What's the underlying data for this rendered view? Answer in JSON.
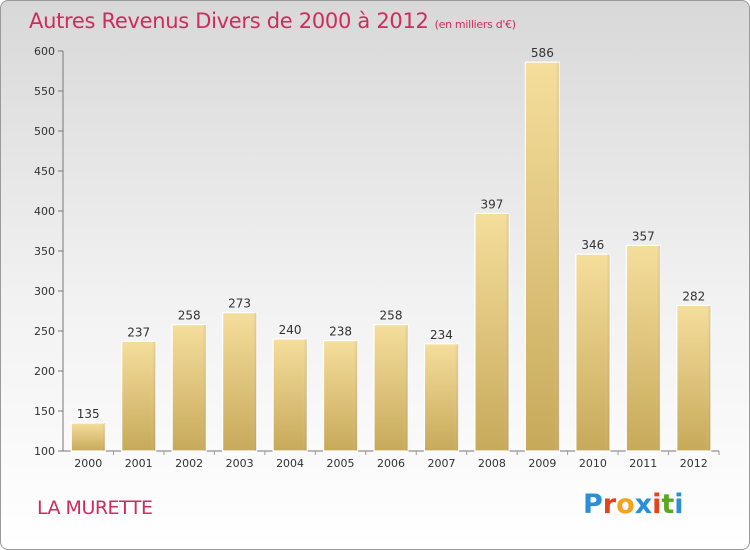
{
  "title": "Autres Revenus Divers de 2000 à 2012",
  "unit": "(en milliers d'€)",
  "location": "LA MURETTE",
  "logo": {
    "text": "Proxiti",
    "letter_colors": [
      "#2b8fd6",
      "#e8421c",
      "#f5a21a",
      "#2b8fd6",
      "#e8421c",
      "#5aa820",
      "#2b8fd6"
    ]
  },
  "colors": {
    "title": "#d02a5e",
    "bar_light": "#f5de9c",
    "bar_dark": "#c7a95a"
  },
  "chart_data": {
    "type": "bar",
    "categories": [
      "2000",
      "2001",
      "2002",
      "2003",
      "2004",
      "2005",
      "2006",
      "2007",
      "2008",
      "2009",
      "2010",
      "2011",
      "2012"
    ],
    "values": [
      135,
      237,
      258,
      273,
      240,
      238,
      258,
      234,
      397,
      586,
      346,
      357,
      282
    ],
    "ylim": [
      100,
      600
    ],
    "yticks": [
      100,
      150,
      200,
      250,
      300,
      350,
      400,
      450,
      500,
      550,
      600
    ],
    "grid": false,
    "data_labels": true
  }
}
